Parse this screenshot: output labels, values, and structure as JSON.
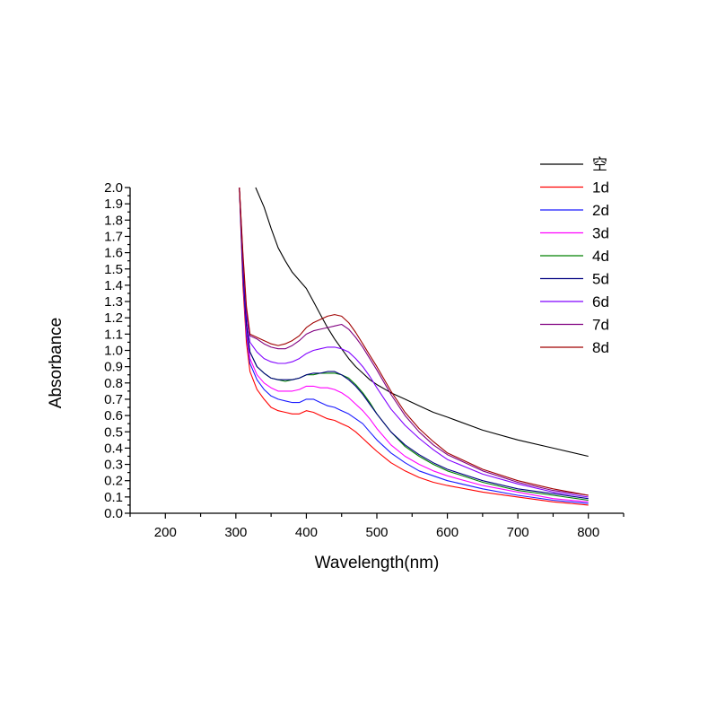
{
  "chart_data": {
    "type": "line",
    "title": "",
    "xlabel": "Wavelength(nm)",
    "ylabel": "Absorbance",
    "xlim": [
      150,
      850
    ],
    "ylim": [
      0.0,
      2.0
    ],
    "x_ticks": [
      200,
      300,
      400,
      500,
      600,
      700,
      800
    ],
    "x_tick_labels": [
      "200",
      "300",
      "400",
      "500",
      "600",
      "700",
      "800"
    ],
    "y_ticks": [
      0.0,
      0.1,
      0.2,
      0.3,
      0.4,
      0.5,
      0.6,
      0.7,
      0.8,
      0.9,
      1.0,
      1.1,
      1.2,
      1.3,
      1.4,
      1.5,
      1.6,
      1.7,
      1.8,
      1.9,
      2.0
    ],
    "y_tick_labels": [
      "0.0",
      "0.1",
      "0.2",
      "0.3",
      "0.4",
      "0.5",
      "0.6",
      "0.7",
      "0.8",
      "0.9",
      "1.0",
      "1.1",
      "1.2",
      "1.3",
      "1.4",
      "1.5",
      "1.6",
      "1.7",
      "1.8",
      "1.9",
      "2.0"
    ],
    "legend_position": "top-right",
    "grid": false,
    "series": [
      {
        "name": "空",
        "color": "#000000",
        "x": [
          328,
          340,
          350,
          360,
          370,
          380,
          390,
          400,
          410,
          420,
          430,
          440,
          450,
          460,
          470,
          480,
          490,
          500,
          520,
          540,
          560,
          580,
          600,
          650,
          700,
          750,
          800
        ],
        "y": [
          2.0,
          1.88,
          1.75,
          1.63,
          1.55,
          1.48,
          1.43,
          1.38,
          1.3,
          1.22,
          1.14,
          1.07,
          1.01,
          0.95,
          0.9,
          0.86,
          0.82,
          0.79,
          0.74,
          0.7,
          0.66,
          0.62,
          0.59,
          0.51,
          0.45,
          0.4,
          0.35
        ]
      },
      {
        "name": "1d",
        "color": "#ff0000",
        "x": [
          305,
          310,
          315,
          320,
          330,
          340,
          350,
          360,
          370,
          380,
          390,
          400,
          410,
          420,
          430,
          440,
          450,
          460,
          470,
          480,
          490,
          500,
          520,
          540,
          560,
          580,
          600,
          650,
          700,
          750,
          800
        ],
        "y": [
          2.0,
          1.4,
          1.05,
          0.87,
          0.76,
          0.7,
          0.65,
          0.63,
          0.62,
          0.61,
          0.61,
          0.63,
          0.62,
          0.6,
          0.58,
          0.57,
          0.55,
          0.53,
          0.5,
          0.46,
          0.42,
          0.38,
          0.31,
          0.26,
          0.22,
          0.19,
          0.17,
          0.13,
          0.1,
          0.07,
          0.05
        ]
      },
      {
        "name": "2d",
        "color": "#1a1aff",
        "x": [
          305,
          310,
          315,
          320,
          330,
          340,
          350,
          360,
          370,
          380,
          390,
          400,
          410,
          420,
          430,
          440,
          450,
          460,
          470,
          480,
          490,
          500,
          520,
          540,
          560,
          580,
          600,
          650,
          700,
          750,
          800
        ],
        "y": [
          2.0,
          1.45,
          1.1,
          0.92,
          0.82,
          0.76,
          0.72,
          0.7,
          0.69,
          0.68,
          0.68,
          0.7,
          0.7,
          0.68,
          0.66,
          0.65,
          0.63,
          0.61,
          0.58,
          0.55,
          0.5,
          0.45,
          0.37,
          0.31,
          0.26,
          0.23,
          0.2,
          0.15,
          0.11,
          0.08,
          0.06
        ]
      },
      {
        "name": "3d",
        "color": "#ff00ff",
        "x": [
          305,
          310,
          315,
          320,
          330,
          340,
          350,
          360,
          370,
          380,
          390,
          400,
          410,
          420,
          430,
          440,
          450,
          460,
          470,
          480,
          490,
          500,
          520,
          540,
          560,
          580,
          600,
          650,
          700,
          750,
          800
        ],
        "y": [
          2.0,
          1.48,
          1.13,
          0.95,
          0.85,
          0.8,
          0.77,
          0.75,
          0.75,
          0.75,
          0.76,
          0.78,
          0.78,
          0.77,
          0.77,
          0.76,
          0.74,
          0.71,
          0.67,
          0.63,
          0.58,
          0.52,
          0.42,
          0.35,
          0.3,
          0.26,
          0.23,
          0.17,
          0.13,
          0.09,
          0.07
        ]
      },
      {
        "name": "4d",
        "color": "#008000",
        "x": [
          305,
          310,
          315,
          320,
          330,
          340,
          350,
          360,
          370,
          380,
          390,
          400,
          410,
          420,
          430,
          440,
          450,
          460,
          470,
          480,
          490,
          500,
          520,
          540,
          560,
          580,
          600,
          650,
          700,
          750,
          800
        ],
        "y": [
          2.0,
          1.5,
          1.16,
          0.99,
          0.9,
          0.86,
          0.83,
          0.82,
          0.81,
          0.82,
          0.83,
          0.85,
          0.85,
          0.86,
          0.86,
          0.86,
          0.85,
          0.83,
          0.79,
          0.74,
          0.68,
          0.61,
          0.5,
          0.41,
          0.35,
          0.3,
          0.26,
          0.19,
          0.14,
          0.11,
          0.08
        ]
      },
      {
        "name": "5d",
        "color": "#000080",
        "x": [
          305,
          310,
          315,
          320,
          330,
          340,
          350,
          360,
          370,
          380,
          390,
          400,
          410,
          420,
          430,
          440,
          450,
          460,
          470,
          480,
          490,
          500,
          520,
          540,
          560,
          580,
          600,
          650,
          700,
          750,
          800
        ],
        "y": [
          2.0,
          1.5,
          1.16,
          0.99,
          0.9,
          0.86,
          0.83,
          0.82,
          0.82,
          0.82,
          0.83,
          0.85,
          0.86,
          0.86,
          0.87,
          0.87,
          0.85,
          0.82,
          0.78,
          0.73,
          0.67,
          0.61,
          0.5,
          0.42,
          0.36,
          0.31,
          0.27,
          0.2,
          0.15,
          0.12,
          0.09
        ]
      },
      {
        "name": "6d",
        "color": "#8000ff",
        "x": [
          305,
          310,
          315,
          320,
          330,
          340,
          350,
          360,
          370,
          380,
          390,
          400,
          410,
          420,
          430,
          440,
          450,
          460,
          470,
          480,
          490,
          500,
          520,
          540,
          560,
          580,
          600,
          650,
          700,
          750,
          800
        ],
        "y": [
          2.0,
          1.55,
          1.22,
          1.05,
          0.99,
          0.95,
          0.93,
          0.92,
          0.92,
          0.93,
          0.95,
          0.98,
          1.0,
          1.01,
          1.02,
          1.02,
          1.01,
          0.99,
          0.95,
          0.9,
          0.84,
          0.77,
          0.64,
          0.54,
          0.46,
          0.39,
          0.33,
          0.24,
          0.18,
          0.13,
          0.1
        ]
      },
      {
        "name": "7d",
        "color": "#800080",
        "x": [
          305,
          310,
          315,
          320,
          330,
          340,
          350,
          360,
          370,
          380,
          390,
          400,
          410,
          420,
          430,
          440,
          450,
          460,
          470,
          480,
          490,
          500,
          520,
          540,
          560,
          580,
          600,
          650,
          700,
          750,
          800
        ],
        "y": [
          2.0,
          1.58,
          1.25,
          1.09,
          1.07,
          1.04,
          1.02,
          1.01,
          1.01,
          1.03,
          1.06,
          1.1,
          1.12,
          1.13,
          1.14,
          1.15,
          1.16,
          1.13,
          1.08,
          1.02,
          0.95,
          0.88,
          0.73,
          0.6,
          0.5,
          0.42,
          0.36,
          0.26,
          0.19,
          0.14,
          0.11
        ]
      },
      {
        "name": "8d",
        "color": "#a00000",
        "x": [
          305,
          310,
          315,
          320,
          330,
          340,
          350,
          360,
          370,
          380,
          390,
          400,
          410,
          420,
          430,
          440,
          450,
          460,
          470,
          480,
          490,
          500,
          520,
          540,
          560,
          580,
          600,
          650,
          700,
          750,
          800
        ],
        "y": [
          2.0,
          1.6,
          1.27,
          1.1,
          1.08,
          1.06,
          1.04,
          1.03,
          1.04,
          1.06,
          1.09,
          1.14,
          1.17,
          1.19,
          1.21,
          1.22,
          1.21,
          1.17,
          1.11,
          1.04,
          0.97,
          0.9,
          0.75,
          0.62,
          0.52,
          0.44,
          0.37,
          0.27,
          0.2,
          0.15,
          0.11
        ]
      }
    ]
  }
}
